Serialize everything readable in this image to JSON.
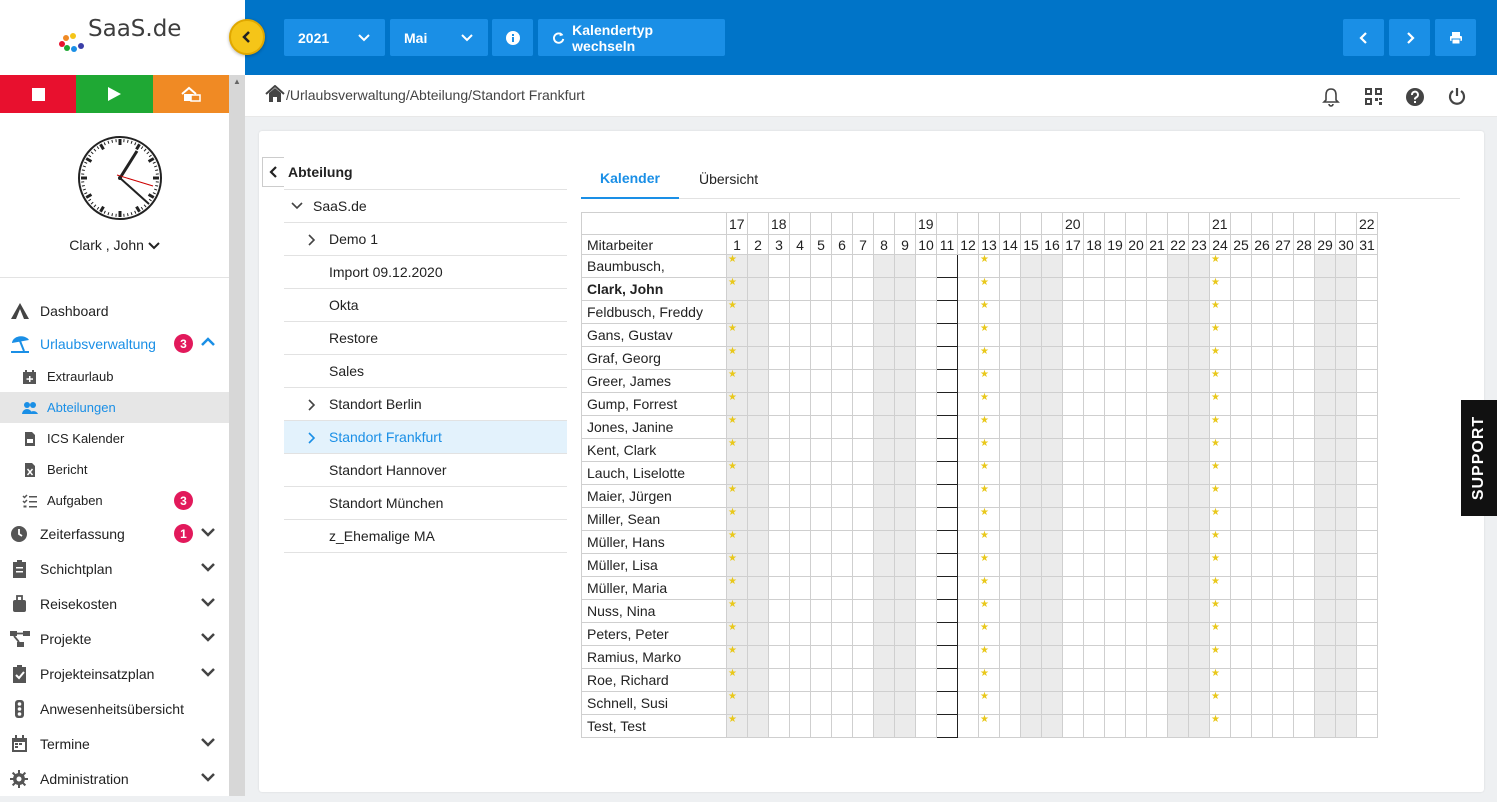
{
  "logo": {
    "text": "SaaS.de"
  },
  "toolbar": {
    "year": "2021",
    "month": "Mai",
    "switch_label": "Kalendertyp wechseln"
  },
  "user": {
    "name": "Clark , John"
  },
  "breadcrumb": {
    "path": "/Urlaubsverwaltung/Abteilung/Standort Frankfurt"
  },
  "nav": {
    "dashboard": "Dashboard",
    "urlaub": "Urlaubsverwaltung",
    "urlaub_badge": "3",
    "extraurlaub": "Extraurlaub",
    "abteilungen": "Abteilungen",
    "ics": "ICS Kalender",
    "bericht": "Bericht",
    "aufgaben": "Aufgaben",
    "aufgaben_badge": "3",
    "zeiterfassung": "Zeiterfassung",
    "zeit_badge": "1",
    "schichtplan": "Schichtplan",
    "reisekosten": "Reisekosten",
    "projekte": "Projekte",
    "projekteinsatzplan": "Projekteinsatzplan",
    "anwesenheit": "Anwesenheitsübersicht",
    "termine": "Termine",
    "administration": "Administration"
  },
  "tree": {
    "header": "Abteilung",
    "root": "SaaS.de",
    "items": [
      {
        "label": "Demo 1",
        "expandable": true
      },
      {
        "label": "Import 09.12.2020",
        "expandable": false
      },
      {
        "label": "Okta",
        "expandable": false
      },
      {
        "label": "Restore",
        "expandable": false
      },
      {
        "label": "Sales",
        "expandable": false
      },
      {
        "label": "Standort Berlin",
        "expandable": true
      },
      {
        "label": "Standort Frankfurt",
        "expandable": true,
        "selected": true
      },
      {
        "label": "Standort Hannover",
        "expandable": false
      },
      {
        "label": "Standort München",
        "expandable": false
      },
      {
        "label": "z_Ehemalige MA",
        "expandable": false
      }
    ]
  },
  "tabs": {
    "kalender": "Kalender",
    "uebersicht": "Übersicht"
  },
  "calendar": {
    "column_header": "Mitarbeiter",
    "weeks": [
      {
        "label": "17",
        "day": 1
      },
      {
        "label": "18",
        "day": 3
      },
      {
        "label": "19",
        "day": 10
      },
      {
        "label": "20",
        "day": 17
      },
      {
        "label": "21",
        "day": 24
      },
      {
        "label": "22",
        "day": 31
      }
    ],
    "days": 31,
    "weekend_days": [
      1,
      2,
      8,
      9,
      15,
      16,
      22,
      23,
      29,
      30
    ],
    "holiday_days": [
      1,
      13,
      24
    ],
    "highlight_day": 11,
    "employees": [
      {
        "name": "Baumbusch,",
        "bold": false
      },
      {
        "name": "Clark, John",
        "bold": true
      },
      {
        "name": "Feldbusch, Freddy",
        "bold": false
      },
      {
        "name": "Gans, Gustav",
        "bold": false
      },
      {
        "name": "Graf, Georg",
        "bold": false
      },
      {
        "name": "Greer, James",
        "bold": false
      },
      {
        "name": "Gump, Forrest",
        "bold": false
      },
      {
        "name": "Jones, Janine",
        "bold": false
      },
      {
        "name": "Kent, Clark",
        "bold": false
      },
      {
        "name": "Lauch, Liselotte",
        "bold": false
      },
      {
        "name": "Maier, Jürgen",
        "bold": false
      },
      {
        "name": "Miller, Sean",
        "bold": false
      },
      {
        "name": "Müller, Hans",
        "bold": false
      },
      {
        "name": "Müller, Lisa",
        "bold": false
      },
      {
        "name": "Müller, Maria",
        "bold": false
      },
      {
        "name": "Nuss, Nina",
        "bold": false
      },
      {
        "name": "Peters, Peter",
        "bold": false
      },
      {
        "name": "Ramius, Marko",
        "bold": false
      },
      {
        "name": "Roe, Richard",
        "bold": false
      },
      {
        "name": "Schnell, Susi",
        "bold": false
      },
      {
        "name": "Test, Test",
        "bold": false
      }
    ]
  },
  "support": {
    "label": "SUPPORT"
  },
  "colors": {
    "primary": "#0074c8",
    "accent": "#1a8fe6",
    "badge": "#e2195b",
    "stop": "#e8102e",
    "play": "#1fa834",
    "home": "#f08a24"
  }
}
